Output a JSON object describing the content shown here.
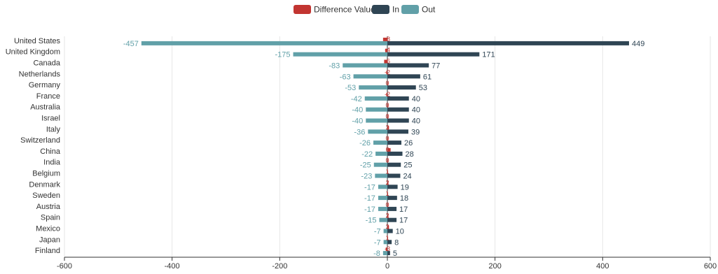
{
  "chart_data": {
    "type": "bar",
    "orientation": "horizontal",
    "categories": [
      "United States",
      "United Kingdom",
      "Canada",
      "Netherlands",
      "Germany",
      "France",
      "Australia",
      "Israel",
      "Italy",
      "Switzerland",
      "China",
      "India",
      "Belgium",
      "Denmark",
      "Sweden",
      "Austria",
      "Spain",
      "Mexico",
      "Japan",
      "Finland"
    ],
    "series": [
      {
        "name": "Difference Value",
        "color": "#c23531",
        "values": [
          -8,
          -4,
          -6,
          -2,
          0,
          -2,
          0,
          0,
          3,
          0,
          6,
          0,
          1,
          2,
          1,
          0,
          2,
          3,
          1,
          -3
        ]
      },
      {
        "name": "In",
        "color": "#2f4554",
        "values": [
          449,
          171,
          77,
          61,
          53,
          40,
          40,
          40,
          39,
          26,
          28,
          25,
          24,
          19,
          18,
          17,
          17,
          10,
          8,
          5
        ]
      },
      {
        "name": "Out",
        "color": "#61a0a8",
        "values": [
          -457,
          -175,
          -83,
          -63,
          -53,
          -42,
          -40,
          -40,
          -36,
          -26,
          -22,
          -25,
          -23,
          -17,
          -17,
          -17,
          -15,
          -7,
          -7,
          -8
        ]
      }
    ],
    "xlim": [
      -600,
      600
    ],
    "xticks": [
      -600,
      -400,
      -200,
      0,
      200,
      400,
      600
    ],
    "grid": true,
    "legend_position": "top-center"
  }
}
